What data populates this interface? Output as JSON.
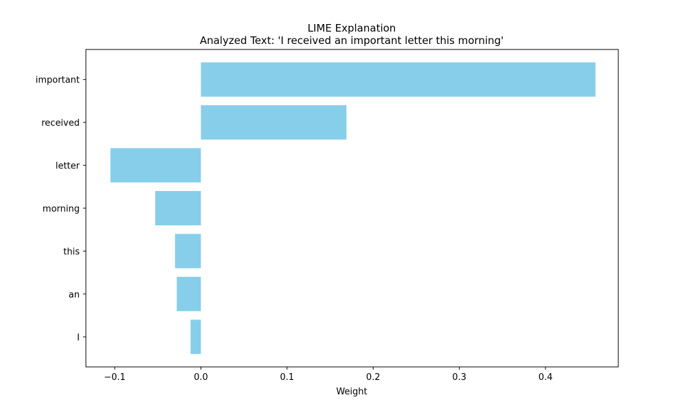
{
  "chart_data": {
    "type": "bar",
    "orientation": "horizontal",
    "title": "LIME Explanation",
    "subtitle": "Analyzed Text: 'I received an important letter this morning'",
    "xlabel": "Weight",
    "ylabel": "",
    "xlim": [
      -0.1335,
      0.8
    ],
    "xlim_max": 0.8,
    "x_ticks": [
      -0.1,
      0.0,
      0.1,
      0.2,
      0.3,
      0.4
    ],
    "x_tick_labels": [
      "−0.1",
      "0.0",
      "0.1",
      "0.2",
      "0.3",
      "0.4"
    ],
    "categories": [
      "important",
      "received",
      "letter",
      "morning",
      "this",
      "an",
      "I"
    ],
    "values": [
      0.458,
      0.169,
      -0.105,
      -0.053,
      -0.03,
      -0.028,
      -0.012
    ],
    "grid": false,
    "legend": "none",
    "bar_color": "#87CEEB"
  }
}
